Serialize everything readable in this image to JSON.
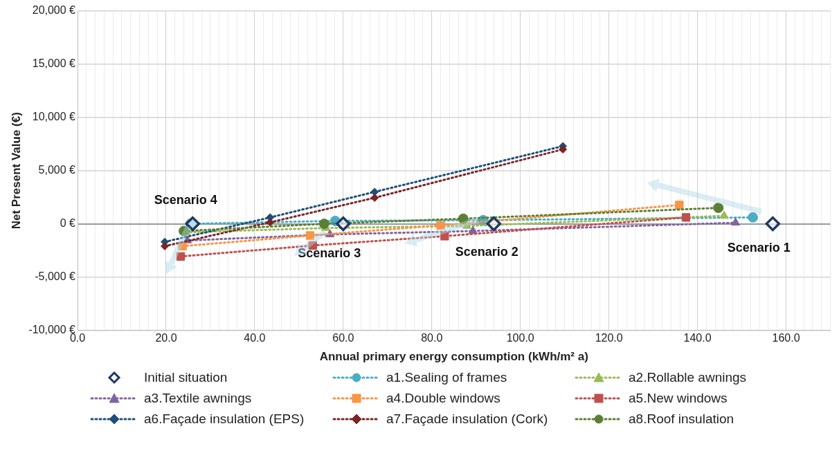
{
  "chart_data": {
    "type": "line",
    "xlabel": "Annual primary energy consumption (kWh/m² a)",
    "ylabel": "Net Present Value (€)",
    "xlim": [
      0,
      170
    ],
    "ylim": [
      -10000,
      20000
    ],
    "xticks": [
      {
        "value": 0,
        "label": "0.0"
      },
      {
        "value": 2,
        "label": null
      },
      {
        "value": 4,
        "label": null
      },
      {
        "value": 6,
        "label": null
      },
      {
        "value": 8,
        "label": null
      },
      {
        "value": 10,
        "label": null
      },
      {
        "value": 12,
        "label": null
      },
      {
        "value": 14,
        "label": null
      },
      {
        "value": 16,
        "label": null
      },
      {
        "value": 18,
        "label": null
      },
      {
        "value": 20,
        "label": "20.0"
      },
      {
        "value": 22,
        "label": null
      },
      {
        "value": 24,
        "label": null
      },
      {
        "value": 26,
        "label": null
      },
      {
        "value": 28,
        "label": null
      },
      {
        "value": 30,
        "label": null
      },
      {
        "value": 32,
        "label": null
      },
      {
        "value": 34,
        "label": null
      },
      {
        "value": 36,
        "label": null
      },
      {
        "value": 38,
        "label": null
      },
      {
        "value": 40,
        "label": "40.0"
      },
      {
        "value": 42,
        "label": null
      },
      {
        "value": 44,
        "label": null
      },
      {
        "value": 46,
        "label": null
      },
      {
        "value": 48,
        "label": null
      },
      {
        "value": 50,
        "label": null
      },
      {
        "value": 52,
        "label": null
      },
      {
        "value": 54,
        "label": null
      },
      {
        "value": 56,
        "label": null
      },
      {
        "value": 58,
        "label": null
      },
      {
        "value": 60,
        "label": "60.0"
      },
      {
        "value": 62,
        "label": null
      },
      {
        "value": 64,
        "label": null
      },
      {
        "value": 66,
        "label": null
      },
      {
        "value": 68,
        "label": null
      },
      {
        "value": 70,
        "label": null
      },
      {
        "value": 72,
        "label": null
      },
      {
        "value": 74,
        "label": null
      },
      {
        "value": 76,
        "label": null
      },
      {
        "value": 78,
        "label": null
      },
      {
        "value": 80,
        "label": "80.0"
      },
      {
        "value": 82,
        "label": null
      },
      {
        "value": 84,
        "label": null
      },
      {
        "value": 86,
        "label": null
      },
      {
        "value": 88,
        "label": null
      },
      {
        "value": 90,
        "label": null
      },
      {
        "value": 92,
        "label": null
      },
      {
        "value": 94,
        "label": null
      },
      {
        "value": 96,
        "label": null
      },
      {
        "value": 98,
        "label": null
      },
      {
        "value": 100,
        "label": "100.0"
      },
      {
        "value": 102,
        "label": null
      },
      {
        "value": 104,
        "label": null
      },
      {
        "value": 106,
        "label": null
      },
      {
        "value": 108,
        "label": null
      },
      {
        "value": 110,
        "label": null
      },
      {
        "value": 112,
        "label": null
      },
      {
        "value": 114,
        "label": null
      },
      {
        "value": 116,
        "label": null
      },
      {
        "value": 118,
        "label": null
      },
      {
        "value": 120,
        "label": "120.0"
      },
      {
        "value": 122,
        "label": null
      },
      {
        "value": 124,
        "label": null
      },
      {
        "value": 126,
        "label": null
      },
      {
        "value": 128,
        "label": null
      },
      {
        "value": 130,
        "label": null
      },
      {
        "value": 132,
        "label": null
      },
      {
        "value": 134,
        "label": null
      },
      {
        "value": 136,
        "label": null
      },
      {
        "value": 138,
        "label": null
      },
      {
        "value": 140,
        "label": "140.0"
      },
      {
        "value": 142,
        "label": null
      },
      {
        "value": 144,
        "label": null
      },
      {
        "value": 146,
        "label": null
      },
      {
        "value": 148,
        "label": null
      },
      {
        "value": 150,
        "label": null
      },
      {
        "value": 152,
        "label": null
      },
      {
        "value": 154,
        "label": null
      },
      {
        "value": 156,
        "label": null
      },
      {
        "value": 158,
        "label": null
      },
      {
        "value": 160,
        "label": "160.0"
      },
      {
        "value": 162,
        "label": null
      },
      {
        "value": 164,
        "label": null
      },
      {
        "value": 166,
        "label": null
      },
      {
        "value": 168,
        "label": null
      },
      {
        "value": 170,
        "label": null
      }
    ],
    "yticks": [
      {
        "value": -10000,
        "label": "-10,000 €"
      },
      {
        "value": -5000,
        "label": "-5,000 €"
      },
      {
        "value": 0,
        "label": "0 €"
      },
      {
        "value": 5000,
        "label": "5,000 €"
      },
      {
        "value": 10000,
        "label": "10,000 €"
      },
      {
        "value": 15000,
        "label": "15,000 €"
      },
      {
        "value": 20000,
        "label": "20,000 €"
      }
    ],
    "grid": true,
    "legend": "bottom",
    "line_style": "dotted",
    "series": [
      {
        "name": "Initial situation",
        "type": "scatter",
        "marker": "diamond",
        "color": "#1f3864",
        "x": [
          26,
          60,
          94,
          157
        ],
        "values": [
          0,
          0,
          0,
          0
        ]
      },
      {
        "name": "a1.Sealing of frames",
        "marker": "circle",
        "color": "#4bacc6",
        "x": [
          25.5,
          58.2,
          91.6,
          152.5
        ],
        "values": [
          0,
          270,
          340,
          600
        ]
      },
      {
        "name": "a2.Rollable awnings",
        "marker": "triangle",
        "color": "#9bbb59",
        "x": [
          24.5,
          56,
          87.9,
          146
        ],
        "values": [
          -800,
          -400,
          -200,
          750
        ]
      },
      {
        "name": "a3.Textile awnings",
        "marker": "triangle",
        "color": "#8064a2",
        "x": [
          24.8,
          57,
          89.3,
          148.6
        ],
        "values": [
          -1570,
          -1000,
          -680,
          100
        ]
      },
      {
        "name": "a4.Double windows",
        "marker": "square",
        "color": "#f79646",
        "x": [
          23.7,
          52.5,
          82,
          135.9
        ],
        "values": [
          -2100,
          -1100,
          -150,
          1770
        ]
      },
      {
        "name": "a5.New windows",
        "marker": "square",
        "color": "#c0504d",
        "x": [
          23.3,
          53.1,
          82.9,
          137.4
        ],
        "values": [
          -3070,
          -2040,
          -1160,
          600
        ]
      },
      {
        "name": "a6.Façade insulation (EPS)",
        "marker": "diamond",
        "color": "#1f4e79",
        "x": [
          19.7,
          43.5,
          67.1,
          109.6
        ],
        "values": [
          -1700,
          600,
          3000,
          7300
        ]
      },
      {
        "name": "a7.Façade insulation (Cork)",
        "marker": "diamond",
        "color": "#7b2424",
        "x": [
          19.7,
          43.5,
          67.1,
          109.6
        ],
        "values": [
          -2100,
          140,
          2450,
          7000
        ]
      },
      {
        "name": "a8.Roof insulation",
        "marker": "circle",
        "color": "#5b7f33",
        "x": [
          24,
          55.7,
          87.1,
          144.7
        ],
        "values": [
          -680,
          0,
          480,
          1500
        ]
      }
    ],
    "annotations": [
      {
        "text": "Scenario 1",
        "x": 157,
        "y": 0
      },
      {
        "text": "Scenario 2",
        "x": 94,
        "y": 0
      },
      {
        "text": "Scenario 3",
        "x": 60,
        "y": 0
      },
      {
        "text": "Scenario 4",
        "x": 26,
        "y": 0
      }
    ]
  }
}
